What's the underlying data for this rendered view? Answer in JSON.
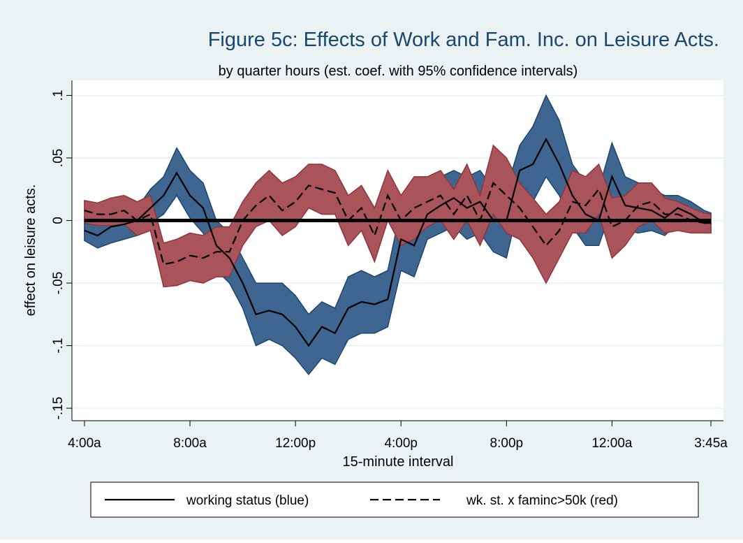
{
  "chart_data": {
    "type": "line",
    "title": "Figure 5c: Effects of Work and Fam. Inc. on Leisure Acts.",
    "subtitle": "by quarter hours (est. coef. with 95% confidence intervals)",
    "x_label": "15-minute interval",
    "y_label": "effect on leisure acts.",
    "x": [
      0,
      2,
      4,
      6,
      8,
      10,
      12,
      14,
      16,
      18,
      20,
      22,
      24,
      26,
      28,
      30,
      32,
      34,
      36,
      38,
      40,
      42,
      44,
      46,
      48,
      50,
      52,
      54,
      56,
      58,
      60,
      62,
      64,
      66,
      68,
      70,
      72,
      74,
      76,
      78,
      80,
      82,
      84,
      86,
      88,
      90,
      92,
      94,
      95
    ],
    "xlim": [
      -1.9,
      96.9
    ],
    "xticks": [
      {
        "value": 0,
        "label": "4:00a"
      },
      {
        "value": 16,
        "label": "8:00a"
      },
      {
        "value": 32,
        "label": "12:00p"
      },
      {
        "value": 48,
        "label": "4:00p"
      },
      {
        "value": 64,
        "label": "8:00p"
      },
      {
        "value": 80,
        "label": "12:00a"
      },
      {
        "value": 95,
        "label": "3:45a"
      }
    ],
    "ylim": [
      -0.16,
      0.112
    ],
    "yticks": [
      {
        "value": -0.15,
        "label": "-.15"
      },
      {
        "value": -0.1,
        "label": "-.1"
      },
      {
        "value": -0.05,
        "label": "-.05"
      },
      0,
      {
        "value": 0.05,
        "label": ".05"
      },
      {
        "value": 0.1,
        "label": ".1"
      }
    ],
    "grid": true,
    "reference_line": 0,
    "series": [
      {
        "name": "working status (blue)",
        "color": "#000000",
        "dashed": false,
        "band_color": "#3f6690",
        "band_edge": "#1a476f",
        "values": [
          -0.008,
          -0.012,
          -0.005,
          -0.003,
          0.0,
          0.01,
          0.02,
          0.038,
          0.02,
          0.01,
          -0.02,
          -0.03,
          -0.05,
          -0.075,
          -0.072,
          -0.075,
          -0.085,
          -0.1,
          -0.085,
          -0.09,
          -0.07,
          -0.065,
          -0.067,
          -0.063,
          -0.015,
          -0.02,
          0.005,
          0.012,
          0.018,
          0.01,
          0.015,
          0.0,
          0.0,
          0.04,
          0.045,
          0.065,
          0.045,
          0.02,
          0.005,
          0.0,
          0.035,
          0.012,
          0.01,
          0.008,
          0.002,
          0.01,
          0.005,
          -0.002,
          -0.002
        ],
        "ci_upper": [
          0.003,
          0.0,
          0.007,
          0.01,
          0.01,
          0.025,
          0.035,
          0.058,
          0.04,
          0.03,
          0.0,
          -0.01,
          -0.03,
          -0.05,
          -0.05,
          -0.05,
          -0.06,
          -0.075,
          -0.065,
          -0.07,
          -0.045,
          -0.04,
          -0.045,
          -0.04,
          0.01,
          0.005,
          0.03,
          0.035,
          0.04,
          0.035,
          0.04,
          0.025,
          0.025,
          0.06,
          0.075,
          0.1,
          0.08,
          0.045,
          0.03,
          0.025,
          0.062,
          0.035,
          0.03,
          0.025,
          0.02,
          0.02,
          0.015,
          0.008,
          0.006
        ],
        "ci_lower": [
          -0.016,
          -0.022,
          -0.018,
          -0.015,
          -0.012,
          -0.002,
          0.005,
          0.02,
          0.002,
          -0.01,
          -0.04,
          -0.05,
          -0.07,
          -0.1,
          -0.095,
          -0.1,
          -0.11,
          -0.123,
          -0.11,
          -0.115,
          -0.095,
          -0.09,
          -0.09,
          -0.085,
          -0.04,
          -0.045,
          -0.015,
          -0.01,
          -0.005,
          -0.015,
          -0.01,
          -0.025,
          -0.03,
          0.015,
          0.015,
          0.035,
          0.02,
          -0.005,
          -0.02,
          -0.02,
          0.01,
          -0.008,
          -0.01,
          -0.008,
          -0.012,
          -0.002,
          -0.005,
          -0.01,
          -0.01
        ]
      },
      {
        "name": "wk. st. x faminc>50k (red)",
        "color": "#000000",
        "dashed": true,
        "band_color": "#a9535a",
        "band_edge": "#90353b",
        "values": [
          0.008,
          0.005,
          0.005,
          0.008,
          0.0,
          0.005,
          -0.035,
          -0.033,
          -0.028,
          -0.03,
          -0.025,
          -0.025,
          0.0,
          0.012,
          0.02,
          0.008,
          0.015,
          0.028,
          0.025,
          0.022,
          0.0,
          0.01,
          -0.012,
          0.02,
          0.0,
          0.01,
          0.015,
          0.02,
          0.005,
          0.02,
          0.0,
          0.03,
          0.02,
          0.01,
          -0.005,
          -0.02,
          -0.008,
          0.015,
          0.012,
          0.025,
          -0.005,
          0.0,
          0.012,
          0.015,
          0.005,
          0.005,
          0.0,
          -0.002,
          -0.002
        ],
        "ci_upper": [
          0.016,
          0.014,
          0.018,
          0.02,
          0.015,
          0.02,
          -0.018,
          -0.015,
          -0.01,
          -0.012,
          -0.005,
          -0.005,
          0.015,
          0.03,
          0.04,
          0.03,
          0.035,
          0.045,
          0.045,
          0.04,
          0.02,
          0.028,
          0.01,
          0.04,
          0.02,
          0.035,
          0.035,
          0.04,
          0.025,
          0.045,
          0.02,
          0.06,
          0.05,
          0.03,
          0.018,
          0.005,
          0.015,
          0.04,
          0.035,
          0.045,
          0.018,
          0.02,
          0.03,
          0.03,
          0.018,
          0.015,
          0.01,
          0.006,
          0.005
        ],
        "ci_lower": [
          -0.002,
          -0.004,
          -0.004,
          -0.003,
          -0.012,
          -0.008,
          -0.053,
          -0.052,
          -0.048,
          -0.05,
          -0.045,
          -0.045,
          -0.02,
          -0.005,
          0.0,
          -0.012,
          -0.005,
          0.01,
          0.005,
          0.005,
          -0.02,
          -0.008,
          -0.033,
          0.0,
          -0.02,
          -0.015,
          -0.005,
          0.0,
          -0.015,
          0.0,
          -0.02,
          0.005,
          -0.01,
          -0.015,
          -0.03,
          -0.05,
          -0.03,
          -0.01,
          -0.01,
          0.005,
          -0.03,
          -0.02,
          -0.005,
          0.0,
          -0.01,
          -0.008,
          -0.01,
          -0.01,
          -0.01
        ]
      }
    ]
  }
}
